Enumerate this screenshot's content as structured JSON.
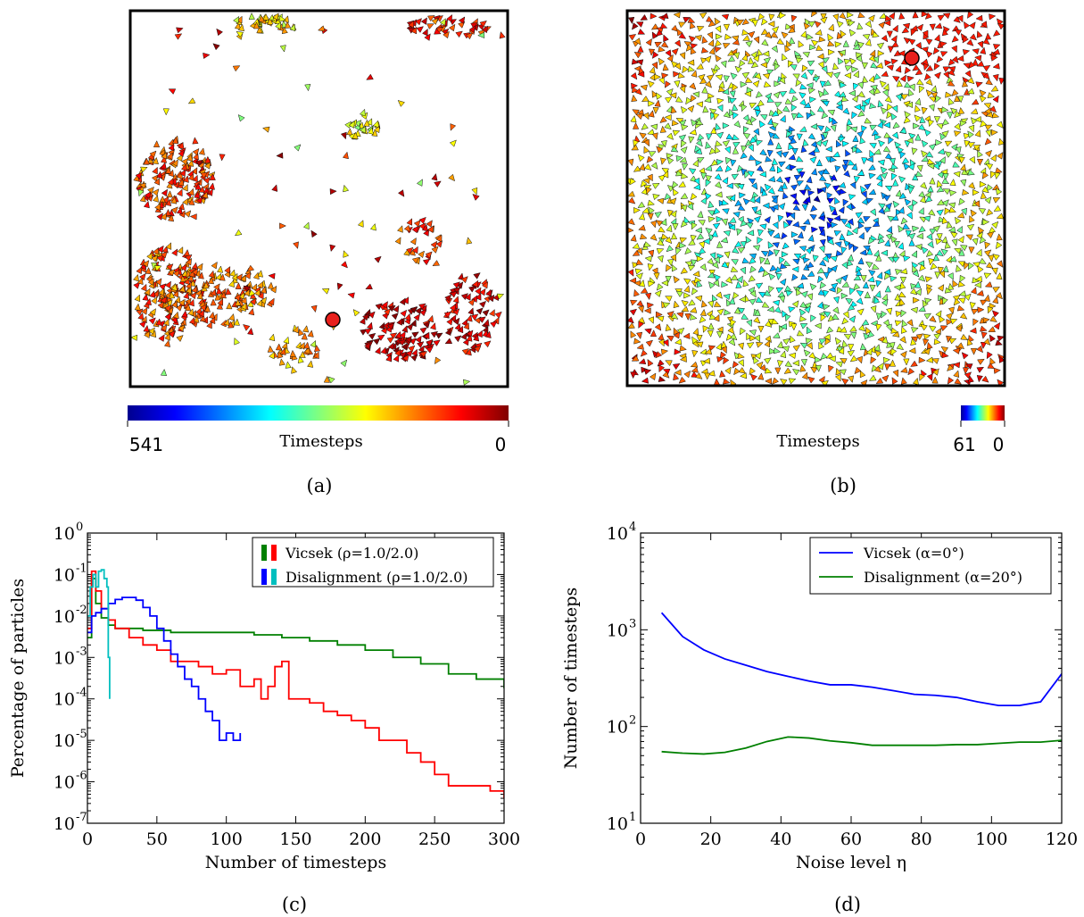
{
  "panels": {
    "a": {
      "label": "(a)",
      "colorbar_title": "Timesteps",
      "colorbar_left": "541",
      "colorbar_right": "0"
    },
    "b": {
      "label": "(b)",
      "colorbar_title": "Timesteps",
      "colorbar_left": "61",
      "colorbar_right": "0"
    },
    "c": {
      "label": "(c)"
    },
    "d": {
      "label": "(d)"
    }
  },
  "chart_data": [
    {
      "panel": "c",
      "type": "line",
      "xlabel": "Number of timesteps",
      "ylabel": "Percentage of particles",
      "xlim": [
        0,
        300
      ],
      "ylim": [
        1e-07,
        1
      ],
      "yscale": "log",
      "grid": false,
      "legend_placement": "top-right",
      "x_ticks": [
        "0",
        "50",
        "100",
        "150",
        "200",
        "250",
        "300"
      ],
      "y_ticks": [
        {
          "base": "10",
          "exp": "-7"
        },
        {
          "base": "10",
          "exp": "-6"
        },
        {
          "base": "10",
          "exp": "-5"
        },
        {
          "base": "10",
          "exp": "-4"
        },
        {
          "base": "10",
          "exp": "-3"
        },
        {
          "base": "10",
          "exp": "-2"
        },
        {
          "base": "10",
          "exp": "-1"
        },
        {
          "base": "10",
          "exp": "0"
        }
      ],
      "legend": [
        {
          "label": "Vicsek (ρ=1.0/2.0)",
          "colors": [
            "#008000",
            "#ff0000"
          ]
        },
        {
          "label": "Disalignment (ρ=1.0/2.0)",
          "colors": [
            "#0000ff",
            "#00bfbf"
          ]
        }
      ],
      "series": [
        {
          "color": "#008000",
          "x": [
            0,
            3,
            6,
            10,
            15,
            20,
            30,
            40,
            50,
            60,
            70,
            80,
            100,
            120,
            140,
            150,
            160,
            180,
            200,
            220,
            240,
            260,
            280,
            300
          ],
          "y": [
            0.003,
            0.08,
            0.02,
            0.009,
            0.006,
            0.005,
            0.005,
            0.0045,
            0.0045,
            0.004,
            0.004,
            0.004,
            0.004,
            0.0035,
            0.003,
            0.003,
            0.0025,
            0.002,
            0.0015,
            0.001,
            0.0007,
            0.0004,
            0.0003,
            0.00018
          ]
        },
        {
          "color": "#ff0000",
          "x": [
            0,
            3,
            6,
            10,
            15,
            20,
            30,
            40,
            50,
            60,
            70,
            80,
            90,
            100,
            110,
            120,
            125,
            130,
            135,
            140,
            145,
            150,
            160,
            170,
            180,
            190,
            200,
            210,
            220,
            230,
            240,
            250,
            260,
            270,
            280,
            290,
            300
          ],
          "y": [
            0.005,
            0.12,
            0.04,
            0.015,
            0.008,
            0.005,
            0.003,
            0.002,
            0.0015,
            0.0008,
            0.0008,
            0.0006,
            0.0004,
            0.0005,
            0.0002,
            0.0003,
            0.0001,
            0.0002,
            0.0006,
            0.0008,
            0.0001,
            0.0001,
            8e-05,
            5e-05,
            4e-05,
            3e-05,
            2e-05,
            1e-05,
            1e-05,
            5e-06,
            3e-06,
            1.5e-06,
            8e-07,
            8e-07,
            8e-07,
            6e-07,
            4e-07
          ]
        },
        {
          "color": "#0000ff",
          "x": [
            0,
            3,
            6,
            10,
            15,
            20,
            25,
            30,
            35,
            40,
            45,
            50,
            55,
            60,
            65,
            70,
            75,
            80,
            85,
            90,
            95,
            100,
            105,
            110
          ],
          "y": [
            0.004,
            0.01,
            0.012,
            0.015,
            0.02,
            0.025,
            0.028,
            0.028,
            0.024,
            0.016,
            0.01,
            0.005,
            0.0025,
            0.0012,
            0.0006,
            0.0003,
            0.0002,
            0.0001,
            5e-05,
            3e-05,
            1e-05,
            1.5e-05,
            1e-05,
            1.5e-05
          ]
        },
        {
          "color": "#00bfbf",
          "x": [
            0,
            2,
            4,
            6,
            8,
            10,
            12,
            14,
            15,
            16
          ],
          "y": [
            0.01,
            0.05,
            0.1,
            0.05,
            0.12,
            0.13,
            0.08,
            0.05,
            0.001,
            0.0001
          ]
        }
      ]
    },
    {
      "panel": "d",
      "type": "line",
      "xlabel": "Noise level η",
      "ylabel": "Number of timesteps",
      "xlim": [
        0,
        120
      ],
      "ylim": [
        10,
        10000
      ],
      "yscale": "log",
      "grid": false,
      "legend_placement": "top-right",
      "x_ticks": [
        "0",
        "20",
        "40",
        "60",
        "80",
        "100",
        "120"
      ],
      "y_ticks": [
        {
          "base": "10",
          "exp": "1"
        },
        {
          "base": "10",
          "exp": "2"
        },
        {
          "base": "10",
          "exp": "3"
        },
        {
          "base": "10",
          "exp": "4"
        }
      ],
      "legend": [
        {
          "label": "Vicsek (α=0°)",
          "colors": [
            "#0000ff"
          ]
        },
        {
          "label": "Disalignment (α=20°)",
          "colors": [
            "#008000"
          ]
        }
      ],
      "series": [
        {
          "color": "#0000ff",
          "x": [
            6,
            12,
            18,
            24,
            30,
            36,
            42,
            48,
            54,
            60,
            66,
            72,
            78,
            84,
            90,
            96,
            102,
            108,
            114,
            120
          ],
          "y": [
            1500,
            850,
            620,
            500,
            430,
            370,
            330,
            295,
            270,
            270,
            255,
            235,
            215,
            210,
            200,
            180,
            165,
            165,
            180,
            350
          ]
        },
        {
          "color": "#008000",
          "x": [
            6,
            12,
            18,
            24,
            30,
            36,
            42,
            48,
            54,
            60,
            66,
            72,
            78,
            84,
            90,
            96,
            102,
            108,
            114,
            120
          ],
          "y": [
            55,
            53,
            52,
            54,
            60,
            70,
            78,
            76,
            71,
            68,
            64,
            64,
            64,
            64,
            65,
            65,
            67,
            69,
            69,
            72
          ]
        }
      ]
    }
  ]
}
